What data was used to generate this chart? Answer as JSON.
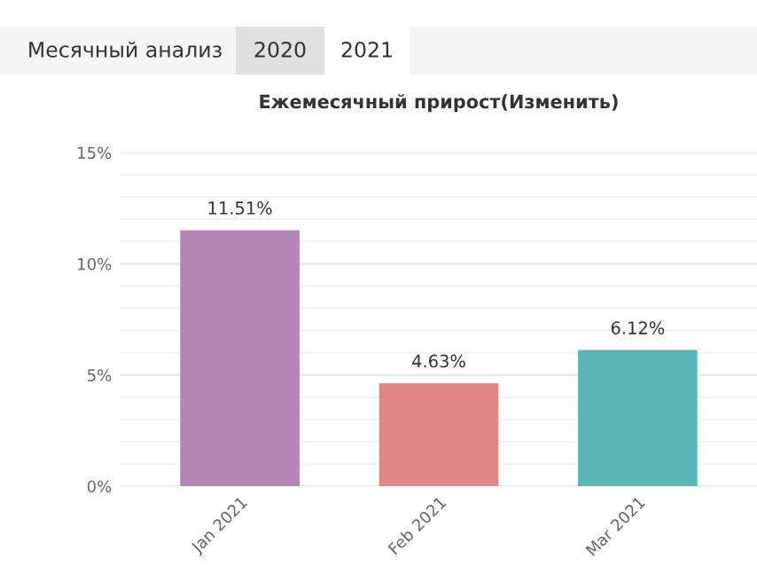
{
  "chart_data": {
    "type": "bar",
    "title": "Ежемесячный прирост(Изменить)",
    "annotations": [
      "Месячный анализ",
      "2020",
      "2021"
    ],
    "categories": [
      "Jan 2021",
      "Feb 2021",
      "Mar 2021"
    ],
    "values": [
      11.51,
      4.63,
      6.12
    ],
    "colors": [
      "#b385b4",
      "#e28686",
      "#5bb5b5"
    ],
    "value_labels": [
      "11.51%",
      "4.63%",
      "6.12%"
    ],
    "ylim": [
      0,
      15
    ],
    "yticks": [
      {
        "value": 0,
        "label": "0%"
      },
      {
        "value": 1,
        "label": null
      },
      {
        "value": 2,
        "label": null
      },
      {
        "value": 3,
        "label": null
      },
      {
        "value": 4,
        "label": null
      },
      {
        "value": 5,
        "label": "5%"
      },
      {
        "value": 6,
        "label": null
      },
      {
        "value": 7,
        "label": null
      },
      {
        "value": 8,
        "label": null
      },
      {
        "value": 9,
        "label": null
      },
      {
        "value": 10,
        "label": "10%"
      },
      {
        "value": 11,
        "label": null
      },
      {
        "value": 12,
        "label": null
      },
      {
        "value": 13,
        "label": null
      },
      {
        "value": 14,
        "label": null
      },
      {
        "value": 15,
        "label": "15%"
      }
    ],
    "grid": "y"
  }
}
